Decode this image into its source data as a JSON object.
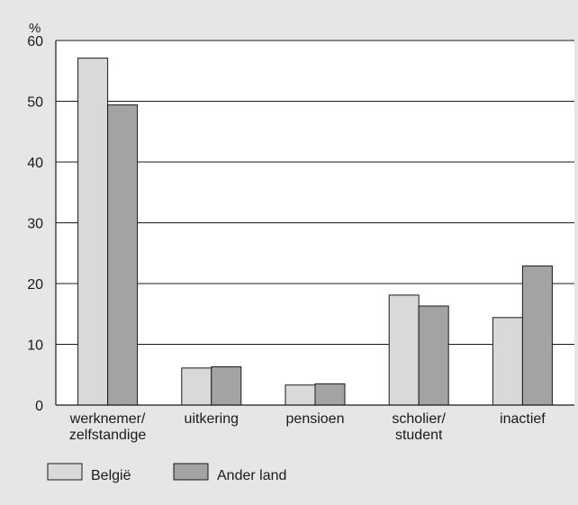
{
  "chart_data": {
    "type": "bar",
    "unit_label": "%",
    "categories": [
      [
        "werknemer/",
        "zelfstandige"
      ],
      [
        "uitkering"
      ],
      [
        "pensioen"
      ],
      [
        "scholier/",
        "student"
      ],
      [
        "inactief"
      ]
    ],
    "series": [
      {
        "name": "België",
        "color": "#d9d9d9",
        "values": [
          57.1,
          6.1,
          3.3,
          18.1,
          14.4
        ]
      },
      {
        "name": "Ander land",
        "color": "#a3a3a3",
        "values": [
          49.4,
          6.3,
          3.5,
          16.3,
          22.9
        ]
      }
    ],
    "ylim": [
      0,
      60
    ],
    "yticks": [
      0,
      10,
      20,
      30,
      40,
      50,
      60
    ],
    "grid": true,
    "legend": "bottom-left",
    "background": "#e6e6e6",
    "plot_background": "#ffffff"
  }
}
